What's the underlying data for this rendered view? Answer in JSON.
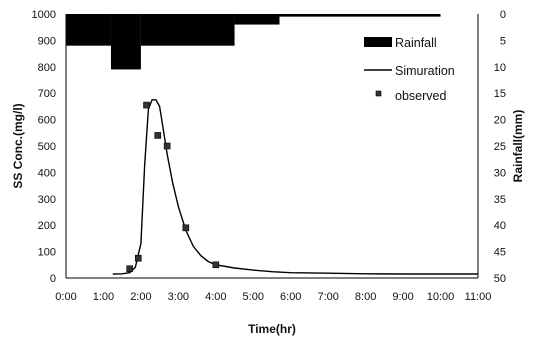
{
  "chart_data": {
    "type": "combo",
    "xlabel": "Time(hr)",
    "ylabel_left": "SS Conc.(mg/l)",
    "ylabel_right": "Rainfall(mm)",
    "xlim": [
      0,
      11
    ],
    "ylim_left": [
      0,
      1000
    ],
    "ylim_right_inverted": [
      0,
      50
    ],
    "x_tick_labels": [
      "0:00",
      "1:00",
      "2:00",
      "3:00",
      "4:00",
      "5:00",
      "6:00",
      "7:00",
      "8:00",
      "9:00",
      "10:00",
      "11:00"
    ],
    "y_left_tick_labels": [
      "0",
      "100",
      "200",
      "300",
      "400",
      "500",
      "600",
      "700",
      "800",
      "900",
      "1000"
    ],
    "y_right_tick_labels": [
      "0",
      "5",
      "10",
      "15",
      "20",
      "25",
      "30",
      "35",
      "40",
      "45",
      "50"
    ],
    "legend_position": "top-right",
    "grid": false,
    "series": [
      {
        "name": "Rainfall",
        "type": "bar-inverted",
        "color": "#000000",
        "bins": [
          {
            "x0": 0.0,
            "x1": 1.2,
            "value": 6
          },
          {
            "x0": 1.2,
            "x1": 2.0,
            "value": 10.5
          },
          {
            "x0": 2.0,
            "x1": 4.5,
            "value": 6
          },
          {
            "x0": 4.5,
            "x1": 5.7,
            "value": 2
          },
          {
            "x0": 5.7,
            "x1": 10.0,
            "value": 0.5
          }
        ]
      },
      {
        "name": "Simuration",
        "type": "line",
        "color": "#000000",
        "x": [
          1.25,
          1.5,
          1.7,
          1.85,
          2.0,
          2.1,
          2.2,
          2.3,
          2.4,
          2.5,
          2.6,
          2.7,
          2.85,
          3.0,
          3.2,
          3.4,
          3.6,
          3.8,
          4.0,
          4.5,
          5.0,
          5.5,
          6.0,
          7.0,
          8.0,
          9.0,
          10.0,
          11.0
        ],
        "y": [
          15,
          16,
          20,
          40,
          130,
          430,
          640,
          675,
          675,
          650,
          560,
          470,
          360,
          270,
          180,
          120,
          85,
          62,
          50,
          38,
          30,
          24,
          20,
          18,
          16,
          15,
          15,
          15
        ]
      },
      {
        "name": "observed",
        "type": "scatter",
        "color": "#333333",
        "x": [
          1.7,
          1.93,
          2.15,
          2.45,
          2.7,
          3.2,
          4.0
        ],
        "y": [
          35,
          75,
          655,
          540,
          500,
          190,
          50
        ]
      }
    ]
  }
}
